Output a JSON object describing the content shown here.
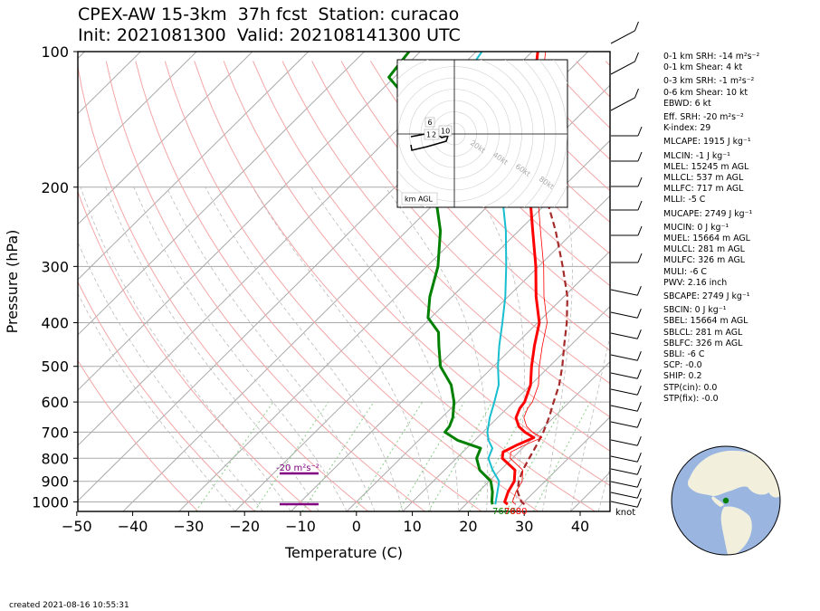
{
  "title": {
    "line1": "CPEX-AW 15-3km  37h fcst  Station: curacao",
    "line2": "Init: 2021081300  Valid: 202108141300 UTC"
  },
  "footer": {
    "created": "created 2021-08-16 10:55:31"
  },
  "stats": [
    "0-1 km SRH: -14 m²s⁻²",
    "0-1 km Shear: 4 kt",
    "0-3 km SRH: -1 m²s⁻²",
    "0-6 km Shear: 10 kt",
    "EBWD: 6 kt",
    "Eff. SRH: -20 m²s⁻²",
    "K-index: 29",
    "MLCAPE: 1915 J kg⁻¹",
    "MLCIN: -1 J kg⁻¹",
    "MLEL: 15245 m AGL",
    "MLLCL: 537 m AGL",
    "MLLFC: 717 m AGL",
    "MLLI: -5 C",
    "MUCAPE: 2749 J kg⁻¹",
    "MUCIN: 0 J kg⁻¹",
    "MUEL: 15664 m AGL",
    "MULCL: 281 m AGL",
    "MULFC: 326 m AGL",
    "MULI: -6 C",
    "PWV: 2.16 inch",
    "SBCAPE: 2749 J kg⁻¹",
    "SBCIN: 0 J kg⁻¹",
    "SBEL: 15664 m AGL",
    "SBLCL: 281 m AGL",
    "SBLFC: 326 m AGL",
    "SBLI: -6 C",
    "SCP: -0.0",
    "SHIP: 0.2",
    "STP(cin): 0.0",
    "STP(fix): -0.0"
  ],
  "chart_data": {
    "type": "line",
    "subtype": "skew-T log-p sounding",
    "xlabel": "Temperature (C)",
    "ylabel": "Pressure (hPa)",
    "xlim": [
      -50,
      45
    ],
    "ylim": [
      1050,
      100
    ],
    "yscale": "log",
    "xticks": [
      -50,
      -40,
      -30,
      -20,
      -10,
      0,
      10,
      20,
      30,
      40
    ],
    "yticks": [
      100,
      200,
      300,
      400,
      500,
      600,
      700,
      800,
      900,
      1000
    ],
    "surface_temperature_label": "7680",
    "surface_dewpoint_label": "7680",
    "eff_inflow_srh_label": "-20 m²s⁻²",
    "wind_unit_label": "knot",
    "colors": {
      "temperature": "#ff0000",
      "dewpoint": "#008000",
      "wetbulb": "#17becf",
      "parcel": "#a52a2a",
      "inflow": "#800080",
      "isobar": "#aaaaaa",
      "isotherm": "#aaaaaa",
      "dry_adiabat": "#f4a6a6",
      "moist_adiabat": "#bbbbbb",
      "mixing_ratio": "#88cc88",
      "globe_ocean": "#9ab6e0",
      "globe_land": "#f2f0dc",
      "station": "#008000"
    },
    "series": [
      {
        "key": "temperature",
        "points": [
          [
            1013,
            27.5
          ],
          [
            1000,
            26.5
          ],
          [
            950,
            25.3
          ],
          [
            900,
            24.5
          ],
          [
            850,
            22.6
          ],
          [
            800,
            18.2
          ],
          [
            775,
            17.2
          ],
          [
            750,
            18.3
          ],
          [
            720,
            20.1
          ],
          [
            700,
            17.5
          ],
          [
            680,
            15.4
          ],
          [
            650,
            13.3
          ],
          [
            620,
            12.3
          ],
          [
            600,
            12.0
          ],
          [
            550,
            10.0
          ],
          [
            500,
            6.8
          ],
          [
            450,
            3.6
          ],
          [
            400,
            0.3
          ],
          [
            350,
            -5.0
          ],
          [
            300,
            -10.5
          ],
          [
            250,
            -17.5
          ],
          [
            200,
            -26.0
          ],
          [
            150,
            -37.8
          ],
          [
            125,
            -42.0
          ],
          [
            100,
            -49.0
          ]
        ]
      },
      {
        "key": "dewpoint",
        "points": [
          [
            1013,
            24.8
          ],
          [
            1000,
            24.2
          ],
          [
            950,
            22.5
          ],
          [
            900,
            20.3
          ],
          [
            850,
            16.3
          ],
          [
            800,
            13.6
          ],
          [
            760,
            12.5
          ],
          [
            730,
            7.0
          ],
          [
            700,
            3.2
          ],
          [
            680,
            3.0
          ],
          [
            650,
            2.0
          ],
          [
            600,
            -0.6
          ],
          [
            550,
            -4.2
          ],
          [
            500,
            -9.5
          ],
          [
            450,
            -13.5
          ],
          [
            420,
            -16.0
          ],
          [
            390,
            -20.5
          ],
          [
            350,
            -24.0
          ],
          [
            300,
            -28.0
          ],
          [
            250,
            -34.0
          ],
          [
            200,
            -43.0
          ],
          [
            150,
            -56.0
          ],
          [
            125,
            -65.0
          ],
          [
            114,
            -71.0
          ],
          [
            100,
            -72.0
          ]
        ]
      },
      {
        "key": "wetbulb",
        "points": [
          [
            1013,
            25.3
          ],
          [
            1000,
            24.9
          ],
          [
            950,
            23.4
          ],
          [
            900,
            21.8
          ],
          [
            850,
            18.6
          ],
          [
            800,
            15.7
          ],
          [
            760,
            14.6
          ],
          [
            730,
            12.5
          ],
          [
            700,
            10.8
          ],
          [
            650,
            8.6
          ],
          [
            600,
            6.6
          ],
          [
            550,
            4.3
          ],
          [
            500,
            0.8
          ],
          [
            450,
            -2.7
          ],
          [
            400,
            -6.3
          ],
          [
            350,
            -10.5
          ],
          [
            300,
            -15.8
          ],
          [
            250,
            -22.3
          ],
          [
            200,
            -31.0
          ],
          [
            150,
            -43.5
          ],
          [
            125,
            -52.0
          ],
          [
            114,
            -57.5
          ],
          [
            100,
            -59.0
          ]
        ]
      },
      {
        "key": "parcel",
        "points": [
          [
            1013,
            30.5
          ],
          [
            1000,
            29.5
          ],
          [
            950,
            27.0
          ],
          [
            900,
            25.3
          ],
          [
            850,
            24.0
          ],
          [
            800,
            23.0
          ],
          [
            750,
            22.0
          ],
          [
            700,
            20.8
          ],
          [
            650,
            19.2
          ],
          [
            600,
            17.2
          ],
          [
            550,
            15.1
          ],
          [
            500,
            12.3
          ],
          [
            450,
            8.9
          ],
          [
            400,
            5.2
          ],
          [
            350,
            0.6
          ],
          [
            300,
            -5.7
          ],
          [
            250,
            -13.4
          ],
          [
            200,
            -23.5
          ],
          [
            150,
            -37.0
          ],
          [
            130,
            -44.0
          ],
          [
            120,
            -49.0
          ]
        ]
      }
    ],
    "hodograph": {
      "ring_labels": [
        "20kt",
        "40kt",
        "60kt",
        "80kt"
      ],
      "height_labels": [
        "6",
        "1",
        "2",
        "10"
      ],
      "legend": "km AGL"
    }
  }
}
